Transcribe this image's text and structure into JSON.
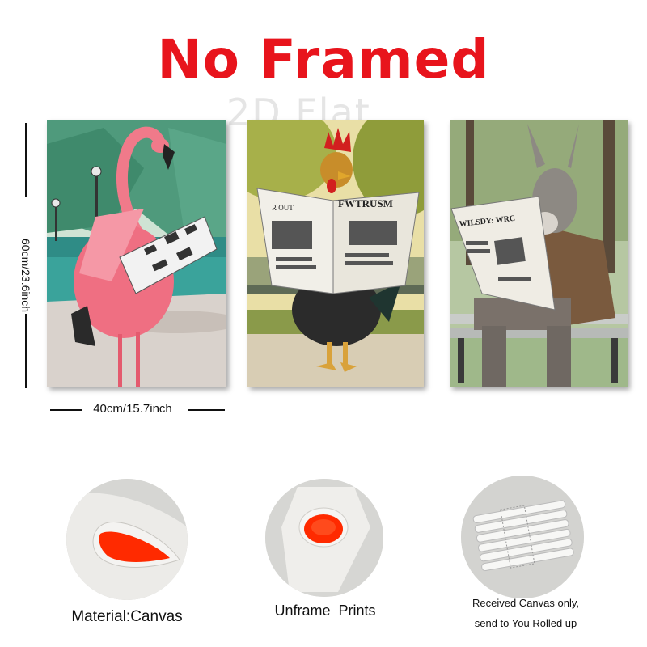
{
  "header": {
    "title": "No Framed",
    "watermark": "2D Flat"
  },
  "dimensions": {
    "height_label": "60cm/23.6inch",
    "width_label": "40cm/15.7inch"
  },
  "posters": [
    {
      "subject": "flamingo reading newspaper"
    },
    {
      "subject": "rooster reading newspaper",
      "headline": "FWTRUSM",
      "masthead": "R OUT"
    },
    {
      "subject": "donkey reading newspaper",
      "headline": "WILSDY: WRC"
    }
  ],
  "features": [
    {
      "caption": "Material:Canvas",
      "icon": "canvas-roll-icon"
    },
    {
      "caption": "Unframe  Prints",
      "icon": "canvas-roll-icon"
    },
    {
      "caption_line1": "Received Canvas only,",
      "caption_line2": "send to You Rolled up",
      "icon": "rolled-canvases-icon"
    }
  ],
  "colors": {
    "title": "#e8141c",
    "canvas_inner": "#ff2a00"
  }
}
